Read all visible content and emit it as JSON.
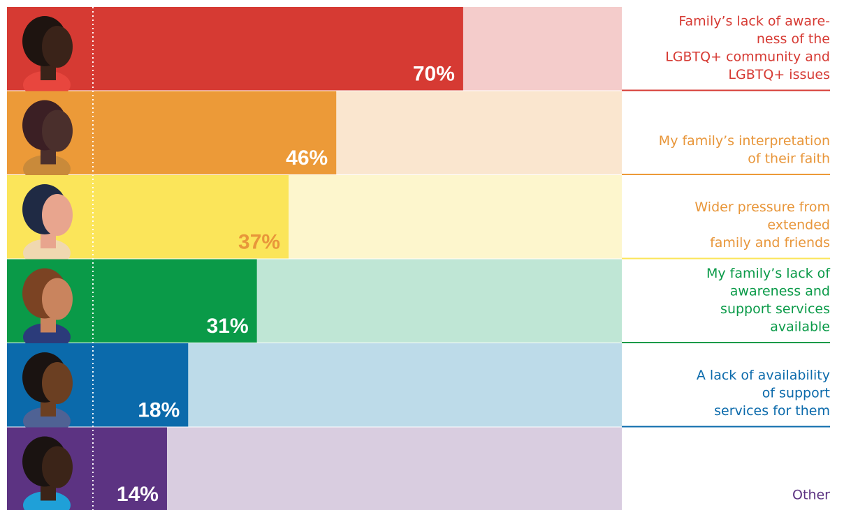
{
  "chart_data": {
    "type": "bar",
    "orientation": "horizontal",
    "categories": [
      [
        "Family’s lack of aware-",
        "ness of the",
        "LGBTQ+ community and",
        "LGBTQ+ issues"
      ],
      [
        "My family’s interpretation",
        "of their faith"
      ],
      [
        "Wider pressure from",
        "extended",
        "family and friends"
      ],
      [
        "My family’s lack of",
        "awareness and",
        "support services",
        "available"
      ],
      [
        "A lack of availability",
        "of support",
        "services for them"
      ],
      [
        "Other"
      ]
    ],
    "values": [
      70,
      46,
      37,
      31,
      18,
      14
    ],
    "value_labels": [
      "70%",
      "46%",
      "37%",
      "31%",
      "18%",
      "14%"
    ],
    "colors": [
      "#d63a33",
      "#ec9a38",
      "#fbe55a",
      "#0a9a48",
      "#0b6aab",
      "#5c3382"
    ],
    "track_colors": [
      "#f4cccb",
      "#fae6cf",
      "#fdf6cd",
      "#bfe6d5",
      "#bddbe9",
      "#d9cde0"
    ],
    "label_colors": [
      "#d63a33",
      "#e8963a",
      "#e8963a",
      "#0a9a48",
      "#0b6aab",
      "#5c3382"
    ],
    "value_label_colors": [
      "#ffffff",
      "#ffffff",
      "#e8963a",
      "#ffffff",
      "#ffffff",
      "#ffffff"
    ],
    "xlim": [
      0,
      100
    ]
  }
}
